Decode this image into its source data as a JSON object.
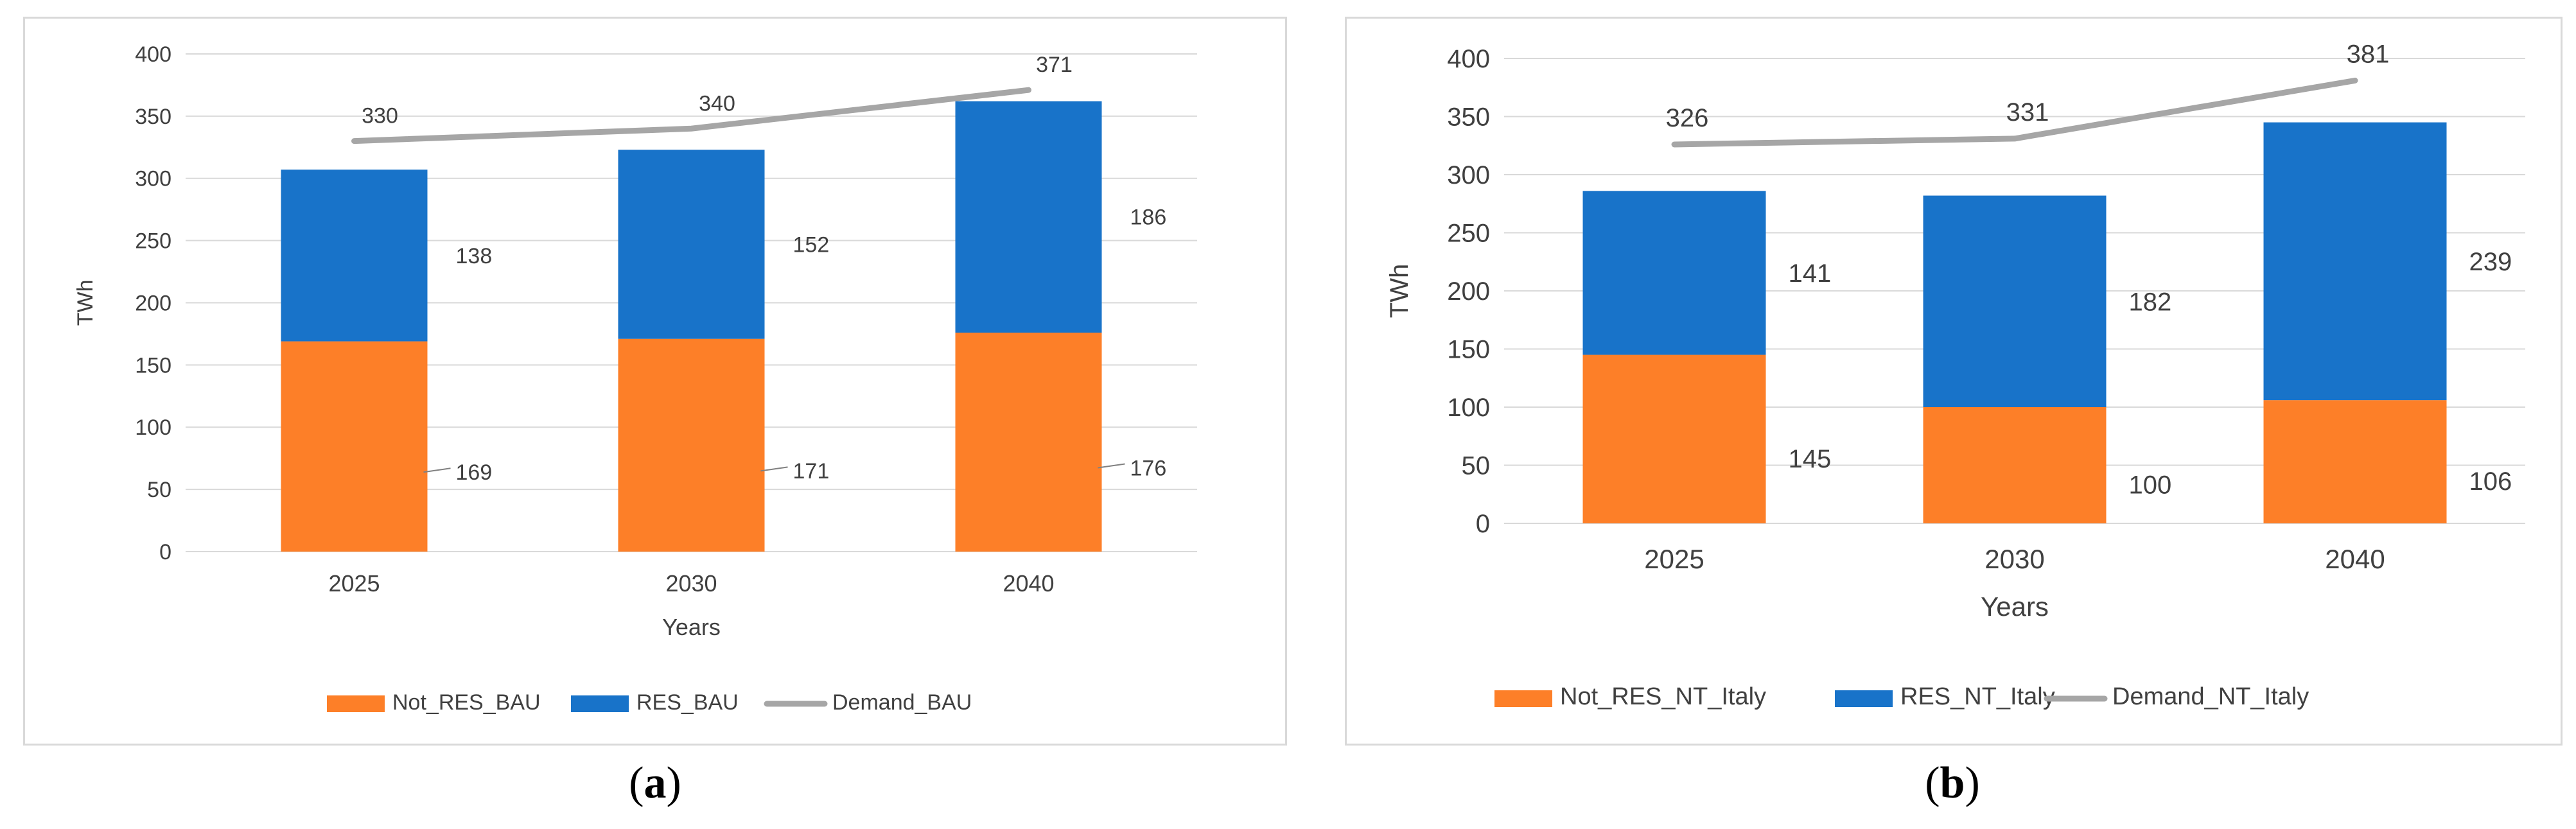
{
  "chart_data": [
    {
      "type": "bar",
      "stacked": true,
      "title": "",
      "xlabel": "Years",
      "ylabel": "TWh",
      "ylim": [
        0,
        400
      ],
      "yticks": [
        "0",
        "50",
        "100",
        "150",
        "200",
        "250",
        "300",
        "350",
        "400"
      ],
      "categories": [
        "2025",
        "2030",
        "2040"
      ],
      "series": [
        {
          "name": "Not_RES_BAU",
          "kind": "bar",
          "color": "#fd7f28",
          "values": [
            169,
            171,
            176
          ]
        },
        {
          "name": "RES_BAU",
          "kind": "bar",
          "color": "#1873c9",
          "values": [
            138,
            152,
            186
          ]
        },
        {
          "name": "Demand_BAU",
          "kind": "line",
          "color": "#a6a6a6",
          "values": [
            330,
            340,
            371
          ]
        }
      ],
      "legend_position": "bottom",
      "grid": true,
      "caption_letter": "a"
    },
    {
      "type": "bar",
      "stacked": true,
      "title": "",
      "xlabel": "Years",
      "ylabel": "TWh",
      "ylim": [
        0,
        400
      ],
      "yticks": [
        "0",
        "50",
        "100",
        "150",
        "200",
        "250",
        "300",
        "350",
        "400"
      ],
      "categories": [
        "2025",
        "2030",
        "2040"
      ],
      "series": [
        {
          "name": "Not_RES_NT_Italy",
          "kind": "bar",
          "color": "#fd7f28",
          "values": [
            145,
            100,
            106
          ]
        },
        {
          "name": "RES_NT_Italy",
          "kind": "bar",
          "color": "#1873c9",
          "values": [
            141,
            182,
            239
          ]
        },
        {
          "name": "Demand_NT_Italy",
          "kind": "line",
          "color": "#a6a6a6",
          "values": [
            326,
            331,
            381
          ]
        }
      ],
      "legend_position": "bottom",
      "grid": true,
      "caption_letter": "b"
    }
  ]
}
